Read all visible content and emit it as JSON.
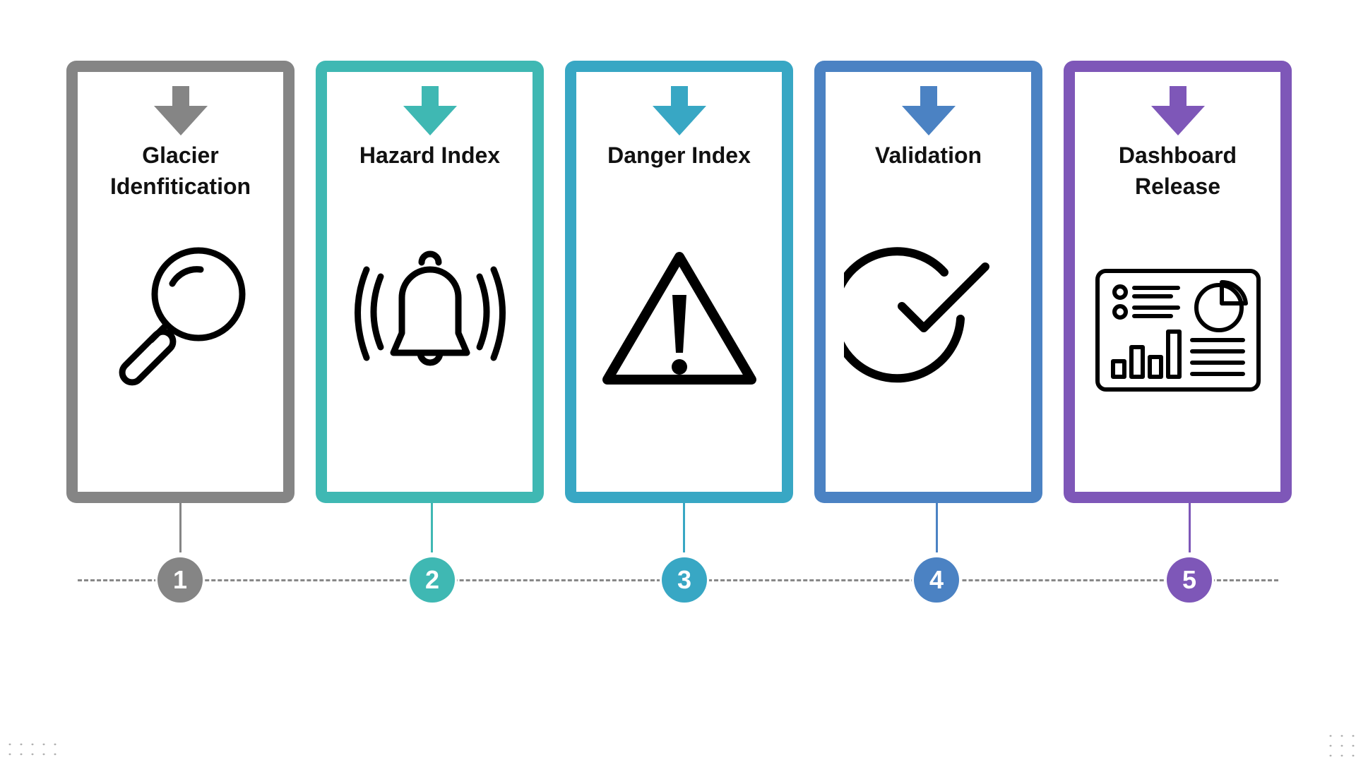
{
  "steps": [
    {
      "number": "1",
      "title": "Glacier\nIdenfitication",
      "color": "#858585",
      "icon": "magnifier-icon"
    },
    {
      "number": "2",
      "title": "Hazard Index",
      "color": "#3fb8b3",
      "icon": "bell-icon"
    },
    {
      "number": "3",
      "title": "Danger Index",
      "color": "#38a7c4",
      "icon": "warning-triangle-icon"
    },
    {
      "number": "4",
      "title": "Validation",
      "color": "#4b82c3",
      "icon": "checkmark-circle-icon"
    },
    {
      "number": "5",
      "title": "Dashboard\nRelease",
      "color": "#7e57b8",
      "icon": "dashboard-icon"
    }
  ]
}
